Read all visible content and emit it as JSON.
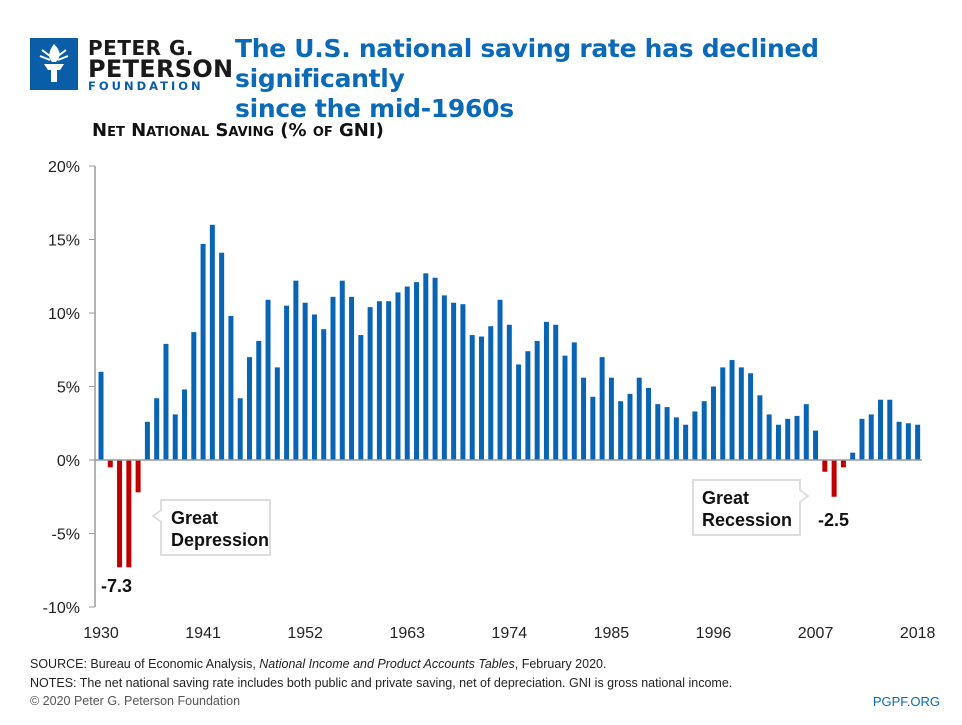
{
  "logo": {
    "line1": "PETER G.",
    "line2": "PETERSON",
    "line3": "FOUNDATION"
  },
  "title_line1": "The U.S. national saving rate has declined significantly",
  "title_line2": "since the mid-1960s",
  "footer": {
    "source_prefix": "SOURCE: Bureau of Economic Analysis, ",
    "source_italic": "National Income and Product Accounts Tables",
    "source_suffix": ", February 2020.",
    "notes": "NOTES: The net national saving rate includes both public and private saving, net of depreciation. GNI is gross national income.",
    "copyright": "© 2020 Peter G. Peterson Foundation",
    "site": "PGPF.ORG"
  },
  "colors": {
    "positive": "#0a64b4",
    "negative": "#c00000",
    "title": "#0a6ab8",
    "logo": "#0a5ea8"
  },
  "chart_data": {
    "type": "bar",
    "title": "Net National Saving (% of GNI)",
    "xlabel": "",
    "ylabel": "",
    "ylim": [
      -10,
      20
    ],
    "yticks": [
      20,
      15,
      10,
      5,
      0,
      -5,
      -10
    ],
    "ytick_labels": [
      "20%",
      "15%",
      "10%",
      "5%",
      "0%",
      "-5%",
      "-10%"
    ],
    "xtick_labels": [
      "1930",
      "1941",
      "1952",
      "1963",
      "1974",
      "1985",
      "1996",
      "2007",
      "2018"
    ],
    "x_start": 1930,
    "values": [
      6.0,
      -0.5,
      -7.3,
      -7.3,
      -2.2,
      2.6,
      4.2,
      7.9,
      3.1,
      4.8,
      8.7,
      14.7,
      16.0,
      14.1,
      9.8,
      4.2,
      7.0,
      8.1,
      10.9,
      6.3,
      10.5,
      12.2,
      10.7,
      9.9,
      8.9,
      11.1,
      12.2,
      11.1,
      8.5,
      10.4,
      10.8,
      10.8,
      11.4,
      11.8,
      12.1,
      12.7,
      12.4,
      11.2,
      10.7,
      10.6,
      8.5,
      8.4,
      9.1,
      10.9,
      9.2,
      6.5,
      7.4,
      8.1,
      9.4,
      9.2,
      7.1,
      8.0,
      5.6,
      4.3,
      7.0,
      5.6,
      4.0,
      4.5,
      5.6,
      4.9,
      3.8,
      3.6,
      2.9,
      2.4,
      3.3,
      4.0,
      5.0,
      6.3,
      6.8,
      6.3,
      5.9,
      4.4,
      3.1,
      2.4,
      2.8,
      3.0,
      3.8,
      2.0,
      -0.8,
      -2.5,
      -0.5,
      0.5,
      2.8,
      3.1,
      4.1,
      4.1,
      2.6,
      2.5,
      2.4
    ],
    "annotations": [
      {
        "line1": "Great",
        "line2": "Depression",
        "value_label": "-7.3"
      },
      {
        "line1": "Great",
        "line2": "Recession",
        "value_label": "-2.5"
      }
    ]
  }
}
